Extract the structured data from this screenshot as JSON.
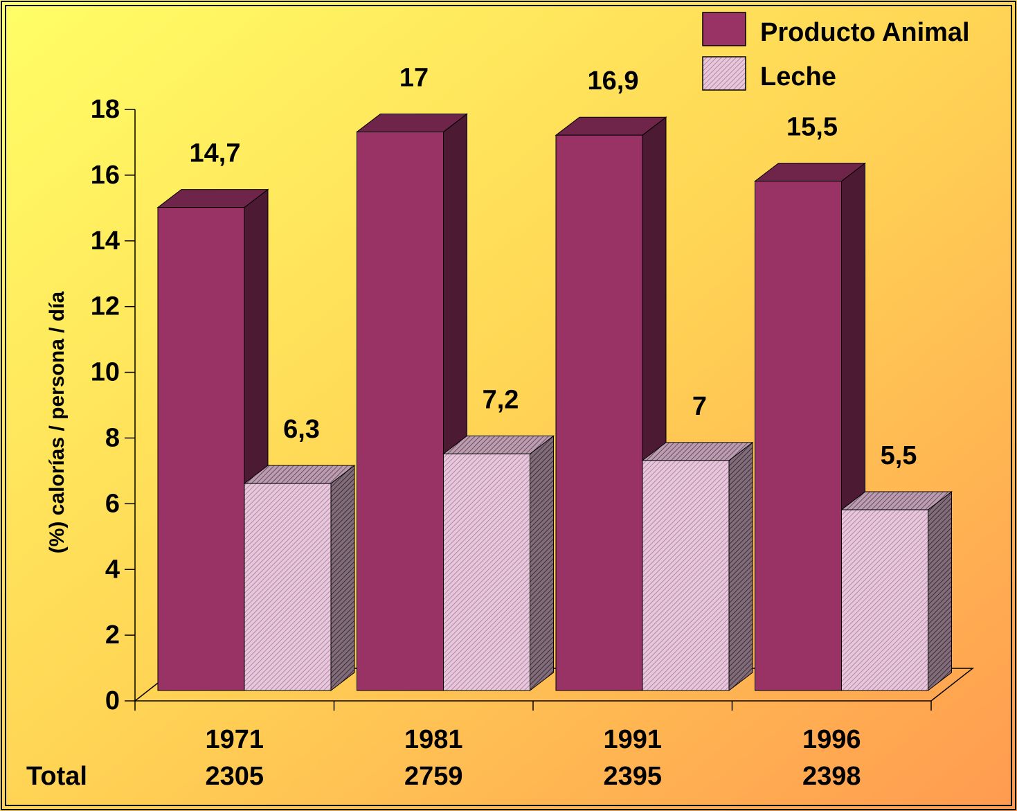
{
  "chart_data": {
    "type": "bar3d",
    "y_label": "(%) calorías / persona / día",
    "categories": [
      "1971",
      "1981",
      "1991",
      "1996"
    ],
    "totals": {
      "label": "Total",
      "values": [
        2305,
        2759,
        2395,
        2398
      ]
    },
    "series": [
      {
        "name": "Producto Animal",
        "color": "#993366",
        "values": [
          14.7,
          17,
          16.9,
          15.5
        ],
        "value_labels": [
          "14,7",
          "17",
          "16,9",
          "15,5"
        ]
      },
      {
        "name": "Leche",
        "color": "#e8c6dc",
        "pattern": "hatch",
        "values": [
          6.3,
          7.2,
          7,
          5.5
        ],
        "value_labels": [
          "6,3",
          "7,2",
          "7",
          "5,5"
        ]
      }
    ],
    "ylim": [
      0,
      18
    ],
    "yticks": [
      0,
      2,
      4,
      6,
      8,
      10,
      12,
      14,
      16,
      18
    ],
    "legend": "top-right"
  }
}
